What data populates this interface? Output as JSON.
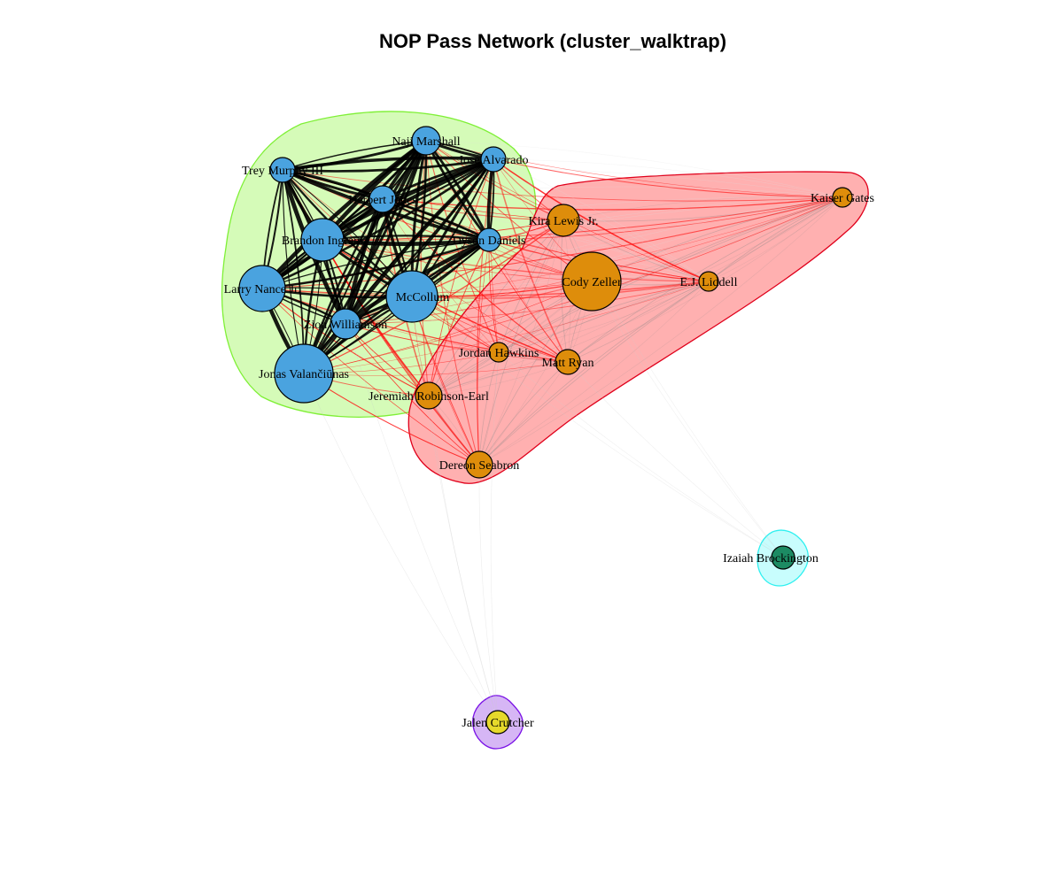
{
  "title": "NOP Pass Network (cluster_walktrap)",
  "colors": {
    "blue_node": "#4aa3df",
    "orange_node": "#de8d0b",
    "green_node": "#1c8b63",
    "yellow_node": "#e6d92b",
    "green_hull_fill": "#d5fbb8",
    "green_hull_stroke": "#7ff036",
    "red_hull_fill": "#ffb0b0",
    "red_hull_stroke": "#e0001b",
    "cyan_hull_fill": "#c8fdfd",
    "cyan_hull_stroke": "#2ef0f0",
    "purple_hull_fill": "#d6b6f5",
    "purple_hull_stroke": "#7a12e6"
  },
  "communities": [
    {
      "id": "c1",
      "color": "green",
      "members": [
        "Naji Marshall",
        "Jose Alvarado",
        "Trey Murphy III",
        "Herbert Jones",
        "Brandon Ingram",
        "Dyson Daniels",
        "Larry Nance Jr.",
        "McCollum",
        "Zion Williamson",
        "Jonas Valančiūnas"
      ]
    },
    {
      "id": "c2",
      "color": "red",
      "members": [
        "Kira Lewis Jr.",
        "Kaiser Gates",
        "Cody Zeller",
        "E.J. Liddell",
        "Jordan Hawkins",
        "Matt Ryan",
        "Jeremiah Robinson-Earl",
        "Dereon Seabron"
      ]
    },
    {
      "id": "c3",
      "color": "cyan",
      "members": [
        "Izaiah Brockington"
      ]
    },
    {
      "id": "c4",
      "color": "purple",
      "members": [
        "Jalen Crutcher"
      ]
    }
  ],
  "nodes": [
    {
      "label": "Naji Marshall",
      "community": "c1"
    },
    {
      "label": "Jose Alvarado",
      "community": "c1"
    },
    {
      "label": "Trey Murphy III",
      "community": "c1"
    },
    {
      "label": "Herbert Jones",
      "community": "c1"
    },
    {
      "label": "Brandon Ingram",
      "community": "c1"
    },
    {
      "label": "Dyson Daniels",
      "community": "c1"
    },
    {
      "label": "Larry Nance Jr.",
      "community": "c1"
    },
    {
      "label": "McCollum",
      "community": "c1"
    },
    {
      "label": "Zion Williamson",
      "community": "c1"
    },
    {
      "label": "Jonas Valančiūnas",
      "community": "c1"
    },
    {
      "label": "Kira Lewis Jr.",
      "community": "c2"
    },
    {
      "label": "Kaiser Gates",
      "community": "c2"
    },
    {
      "label": "Cody Zeller",
      "community": "c2"
    },
    {
      "label": "E.J. Liddell",
      "community": "c2"
    },
    {
      "label": "Jordan Hawkins",
      "community": "c2"
    },
    {
      "label": "Matt Ryan",
      "community": "c2"
    },
    {
      "label": "Jeremiah Robinson-Earl",
      "community": "c2"
    },
    {
      "label": "Dereon Seabron",
      "community": "c2"
    },
    {
      "label": "Izaiah Brockington",
      "community": "c3"
    },
    {
      "label": "Jalen Crutcher",
      "community": "c4"
    }
  ]
}
